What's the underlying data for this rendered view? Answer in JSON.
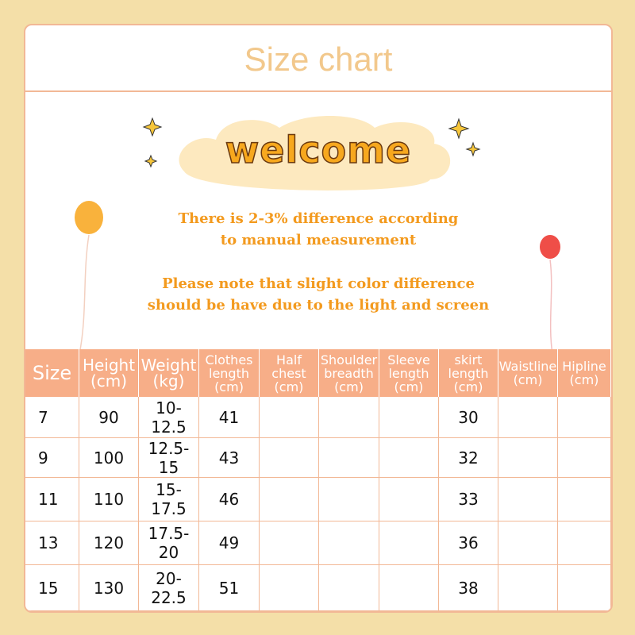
{
  "header": {
    "title": "Size chart"
  },
  "banner": {
    "welcome": "welcome"
  },
  "notes": [
    [
      "There is 2-3% difference according",
      "to manual measurement"
    ],
    [
      "Please note that slight color difference",
      "should be have due to the light and screen"
    ]
  ],
  "table": {
    "columns": [
      "Size",
      "Height\n(cm)",
      "Weight\n(kg)",
      "Clothes\nlength\n(cm)",
      "Half\nchest\n(cm)",
      "Shoulder\nbreadth\n(cm)",
      "Sleeve\nlength\n(cm)",
      "skirt\nlength\n(cm)",
      "Waistline\n(cm)",
      "Hipline\n(cm)"
    ],
    "rows": [
      [
        "7",
        "90",
        "10-12.5",
        "41",
        null,
        null,
        null,
        "30",
        null,
        null
      ],
      [
        "9",
        "100",
        "12.5-15",
        "43",
        null,
        null,
        null,
        "32",
        null,
        null
      ],
      [
        "11",
        "110",
        "15-17.5",
        "46",
        null,
        null,
        null,
        "33",
        null,
        null
      ],
      [
        "13",
        "120",
        "17.5-20",
        "49",
        null,
        null,
        null,
        "36",
        null,
        null
      ],
      [
        "15",
        "130",
        "20-22.5",
        "51",
        null,
        null,
        null,
        "38",
        null,
        null
      ]
    ]
  }
}
